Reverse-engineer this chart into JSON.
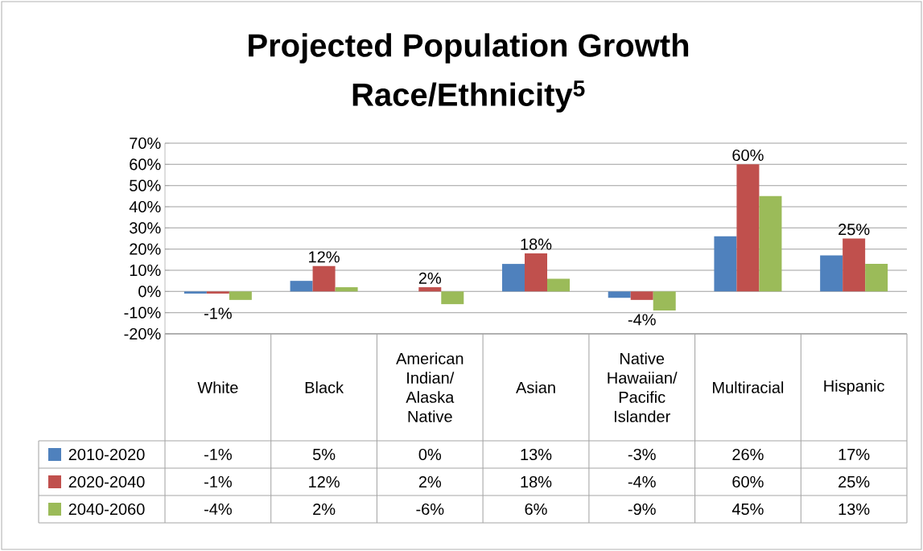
{
  "chart_data": {
    "type": "bar",
    "title": "Projected Population Growth",
    "subtitle": "Race/Ethnicity$^{5}$",
    "categories": [
      "White",
      "Black",
      "American Indian/ Alaska Native",
      "Asian",
      "Native Hawaiian/ Pacific Islander",
      "Multiracial",
      "Hispanic"
    ],
    "series": [
      {
        "name": "2010-2020",
        "color": "#4f81bd",
        "values": [
          -1,
          5,
          0,
          13,
          -3,
          26,
          17
        ],
        "value_labels": [
          "-1%",
          "5%",
          "0%",
          "13%",
          "-3%",
          "26%",
          "17%"
        ]
      },
      {
        "name": "2020-2040",
        "color": "#c0504d",
        "values": [
          -1,
          12,
          2,
          18,
          -4,
          60,
          25
        ],
        "value_labels": [
          "-1%",
          "12%",
          "2%",
          "18%",
          "-4%",
          "60%",
          "25%"
        ]
      },
      {
        "name": "2040-2060",
        "color": "#9bbb59",
        "values": [
          -4,
          2,
          -6,
          6,
          -9,
          45,
          13
        ],
        "value_labels": [
          "-4%",
          "2%",
          "-6%",
          "6%",
          "-9%",
          "45%",
          "13%"
        ]
      }
    ],
    "annotations": [
      {
        "text": "-1%",
        "x": "White",
        "y": -1
      },
      {
        "text": "12%",
        "x": "Black",
        "y": 12
      },
      {
        "text": "2%",
        "x": "American Indian/ Alaska Native",
        "y": 2
      },
      {
        "text": "18%",
        "x": "Asian",
        "y": 18
      },
      {
        "text": "-4%",
        "x": "Native Hawaiian/ Pacific Islander",
        "y": -4
      },
      {
        "text": "60%",
        "x": "Multiracial",
        "y": 60
      },
      {
        "text": "25%",
        "x": "Hispanic",
        "y": 25
      }
    ],
    "ylim": [
      -20,
      70
    ],
    "yticks": [
      {
        "value": -20,
        "label": "-20%"
      },
      {
        "value": -10,
        "label": "-10%"
      },
      {
        "value": 0,
        "label": "0%"
      },
      {
        "value": 10,
        "label": "10%"
      },
      {
        "value": 20,
        "label": "20%"
      },
      {
        "value": 30,
        "label": "30%"
      },
      {
        "value": 40,
        "label": "40%"
      },
      {
        "value": 50,
        "label": "50%"
      },
      {
        "value": 60,
        "label": "60%"
      },
      {
        "value": 70,
        "label": "70%"
      }
    ],
    "grid": "y",
    "legend": "bottom left"
  }
}
